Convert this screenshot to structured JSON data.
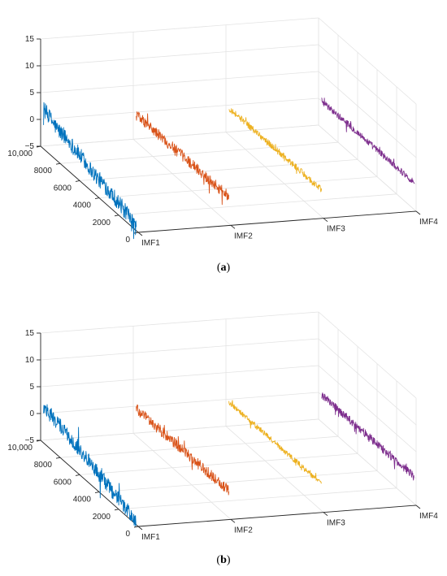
{
  "chart_data": [
    {
      "type": "line",
      "panel": "a",
      "caption_label": "a",
      "categories": [
        "IMF1",
        "IMF2",
        "IMF3",
        "IMF4"
      ],
      "y_ticks": [
        "0",
        "2000",
        "4000",
        "6000",
        "8000",
        "10,000"
      ],
      "y_range": [
        0,
        10000
      ],
      "z_ticks": [
        "-5",
        "0",
        "5",
        "10",
        "15"
      ],
      "z_range": [
        -5,
        15
      ],
      "grid": true,
      "series": [
        {
          "color": "#0072BD",
          "z_profile": [
            2.5,
            1.0,
            0.5,
            -0.5,
            -1.5,
            -2.0,
            -3.0,
            -4.5
          ],
          "noise": 3.0
        },
        {
          "color": "#D95319",
          "z_profile": [
            0.0,
            0.0,
            0.0,
            0.0
          ],
          "noise": 2.0
        },
        {
          "color": "#EDB120",
          "z_profile": [
            0.0,
            0.0,
            0.0,
            0.0
          ],
          "noise": 1.2
        },
        {
          "color": "#7E2F8E",
          "z_profile": [
            0.0,
            0.0,
            0.0,
            0.0
          ],
          "noise": 1.2
        }
      ]
    },
    {
      "type": "line",
      "panel": "b",
      "caption_label": "b",
      "categories": [
        "IMF1",
        "IMF2",
        "IMF3",
        "IMF4"
      ],
      "y_ticks": [
        "0",
        "2000",
        "4000",
        "6000",
        "8000",
        "10,000"
      ],
      "y_range": [
        0,
        10000
      ],
      "z_ticks": [
        "-5",
        "0",
        "5",
        "10",
        "15"
      ],
      "z_range": [
        -5,
        15
      ],
      "grid": true,
      "series": [
        {
          "color": "#0072BD",
          "z_profile": [
            1.5,
            1.0,
            0.5,
            -0.5,
            -1.5,
            -2.5,
            -3.5,
            -4.5
          ],
          "noise": 2.8
        },
        {
          "color": "#D95319",
          "z_profile": [
            0.0,
            0.0,
            0.0,
            0.0
          ],
          "noise": 2.0
        },
        {
          "color": "#EDB120",
          "z_profile": [
            0.0,
            0.0,
            0.0,
            0.0
          ],
          "noise": 1.0
        },
        {
          "color": "#7E2F8E",
          "z_profile": [
            0.0,
            0.0,
            0.0,
            0.0
          ],
          "noise": 1.5
        }
      ]
    }
  ]
}
